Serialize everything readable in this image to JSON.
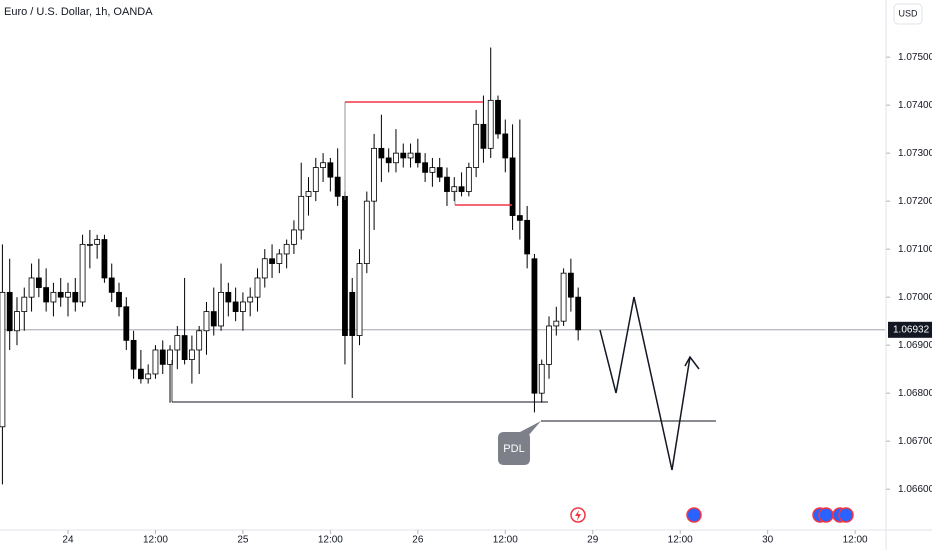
{
  "chart_data": {
    "type": "candlestick",
    "title": "Euro / U.S. Dollar, 1h, OANDA",
    "currency_button": "USD",
    "annotation": "PDL",
    "last_price": 1.06932,
    "up_color": "#ffffff",
    "down_color": "#000000",
    "x": [
      -9,
      -8,
      -7,
      -6,
      -5,
      -4,
      -3,
      -2,
      -1,
      0,
      1,
      2,
      3,
      4,
      5,
      6,
      7,
      8,
      9,
      10,
      11,
      12,
      13,
      14,
      15,
      16,
      17,
      18,
      19,
      20,
      21,
      22,
      23,
      24,
      25,
      26,
      27,
      28,
      29,
      30,
      31,
      32,
      33,
      34,
      35,
      36,
      37,
      38,
      39,
      40,
      41,
      42,
      43,
      44,
      45,
      46,
      47,
      48,
      49,
      50,
      51,
      52,
      53,
      54,
      55,
      56,
      57,
      58,
      59,
      60,
      61,
      62,
      63,
      64,
      65,
      66,
      67,
      68,
      69,
      70
    ],
    "open": [
      1.0673,
      1.0701,
      1.0693,
      1.0697,
      1.07,
      1.0704,
      1.0702,
      1.0699,
      1.0701,
      1.07,
      1.0701,
      1.0699,
      1.0711,
      1.0711,
      1.0712,
      1.0704,
      1.0701,
      1.0698,
      1.0691,
      1.0685,
      1.0683,
      1.0684,
      1.0689,
      1.0686,
      1.0689,
      1.0692,
      1.0687,
      1.0689,
      1.0693,
      1.0697,
      1.0694,
      1.0701,
      1.0699,
      1.0697,
      1.0699,
      1.07,
      1.0704,
      1.0708,
      1.0707,
      1.0709,
      1.0711,
      1.0714,
      1.0721,
      1.0722,
      1.0727,
      1.0728,
      1.0725,
      1.0721,
      1.0701,
      1.0692,
      1.0707,
      1.072,
      1.0731,
      1.0729,
      1.0728,
      1.073,
      1.0729,
      1.073,
      1.0728,
      1.0726,
      1.0727,
      1.0725,
      1.0722,
      1.0723,
      1.0722,
      1.0727,
      1.0736,
      1.0731,
      1.0741,
      1.0734,
      1.0729,
      1.0717,
      1.0716,
      1.0708,
      1.068,
      1.0686,
      1.0694,
      1.0695,
      1.0705,
      1.07
    ],
    "high": [
      1.0711,
      1.0708,
      1.07,
      1.0702,
      1.0707,
      1.0708,
      1.0706,
      1.0703,
      1.0704,
      1.0703,
      1.0704,
      1.0713,
      1.0714,
      1.0713,
      1.0713,
      1.0707,
      1.0703,
      1.07,
      1.0693,
      1.0689,
      1.0686,
      1.069,
      1.0691,
      1.069,
      1.0694,
      1.0704,
      1.0692,
      1.0694,
      1.0699,
      1.0702,
      1.0707,
      1.0703,
      1.0702,
      1.0701,
      1.0702,
      1.0706,
      1.071,
      1.0711,
      1.071,
      1.0712,
      1.0716,
      1.0728,
      1.0725,
      1.0729,
      1.073,
      1.0729,
      1.0731,
      1.0722,
      1.0704,
      1.071,
      1.0722,
      1.0734,
      1.0738,
      1.0731,
      1.0735,
      1.0732,
      1.0732,
      1.0733,
      1.073,
      1.0729,
      1.0729,
      1.0727,
      1.0725,
      1.0726,
      1.0728,
      1.0739,
      1.0742,
      1.0752,
      1.0742,
      1.0737,
      1.0736,
      1.0737,
      1.0719,
      1.0709,
      1.0687,
      1.0696,
      1.0698,
      1.0706,
      1.0708,
      1.0702
    ],
    "low": [
      1.0661,
      1.0689,
      1.069,
      1.0693,
      1.0697,
      1.07,
      1.0697,
      1.0696,
      1.0698,
      1.0696,
      1.0697,
      1.0698,
      1.0706,
      1.0708,
      1.0703,
      1.0699,
      1.0696,
      1.0689,
      1.0683,
      1.0682,
      1.0682,
      1.0683,
      1.0684,
      1.0678,
      1.0685,
      1.0686,
      1.0682,
      1.0684,
      1.0688,
      1.0692,
      1.0693,
      1.0696,
      1.0695,
      1.0693,
      1.0696,
      1.0697,
      1.0702,
      1.0704,
      1.0705,
      1.0706,
      1.0709,
      1.0712,
      1.0717,
      1.072,
      1.0724,
      1.0722,
      1.0719,
      1.0686,
      1.0679,
      1.069,
      1.0705,
      1.0714,
      1.0724,
      1.0726,
      1.0726,
      1.0727,
      1.0727,
      1.0727,
      1.0724,
      1.0723,
      1.0724,
      1.0719,
      1.072,
      1.0721,
      1.0721,
      1.0725,
      1.0728,
      1.0729,
      1.0733,
      1.0726,
      1.0714,
      1.0712,
      1.0706,
      1.0676,
      1.0678,
      1.0683,
      1.0692,
      1.0694,
      1.0697,
      1.0691
    ],
    "close": [
      1.0701,
      1.0693,
      1.0697,
      1.07,
      1.0704,
      1.0702,
      1.0699,
      1.0701,
      1.07,
      1.0701,
      1.0699,
      1.0711,
      1.0711,
      1.0712,
      1.0704,
      1.0701,
      1.0698,
      1.0691,
      1.0685,
      1.0683,
      1.0684,
      1.0689,
      1.0686,
      1.0689,
      1.0692,
      1.0687,
      1.0689,
      1.0693,
      1.0697,
      1.0694,
      1.0701,
      1.0699,
      1.0697,
      1.0699,
      1.07,
      1.0704,
      1.0708,
      1.0707,
      1.0709,
      1.0711,
      1.0714,
      1.0721,
      1.0722,
      1.0727,
      1.0728,
      1.0725,
      1.0721,
      1.0692,
      1.0692,
      1.0707,
      1.072,
      1.0731,
      1.0729,
      1.0728,
      1.073,
      1.0729,
      1.073,
      1.0728,
      1.0726,
      1.0727,
      1.0725,
      1.0722,
      1.0723,
      1.0722,
      1.0727,
      1.0736,
      1.0731,
      1.0741,
      1.0734,
      1.0729,
      1.0717,
      1.0716,
      1.0709,
      1.068,
      1.0686,
      1.0694,
      1.0695,
      1.0705,
      1.07,
      1.06932
    ],
    "xlim": [
      -9.33,
      112.1
    ],
    "xticks": [
      {
        "value": 0,
        "label": "24"
      },
      {
        "value": 12,
        "label": "12:00"
      },
      {
        "value": 24,
        "label": "25"
      },
      {
        "value": 36,
        "label": "12:00"
      },
      {
        "value": 48,
        "label": "26"
      },
      {
        "value": 60,
        "label": "12:00"
      },
      {
        "value": 72,
        "label": "29"
      },
      {
        "value": 84,
        "label": "12:00"
      },
      {
        "value": 96,
        "label": "30"
      },
      {
        "value": 108,
        "label": "12:00"
      }
    ],
    "ylim": [
      1.06515,
      1.07619
    ],
    "yticks": [
      {
        "value": 1.066,
        "label": "1.06600"
      },
      {
        "value": 1.067,
        "label": "1.06700"
      },
      {
        "value": 1.068,
        "label": "1.06800"
      },
      {
        "value": 1.069,
        "label": "1.06900"
      },
      {
        "value": 1.07,
        "label": "1.07000"
      },
      {
        "value": 1.071,
        "label": "1.07100"
      },
      {
        "value": 1.072,
        "label": "1.07200"
      },
      {
        "value": 1.073,
        "label": "1.07300"
      },
      {
        "value": 1.074,
        "label": "1.07400"
      },
      {
        "value": 1.075,
        "label": "1.07500"
      }
    ]
  }
}
